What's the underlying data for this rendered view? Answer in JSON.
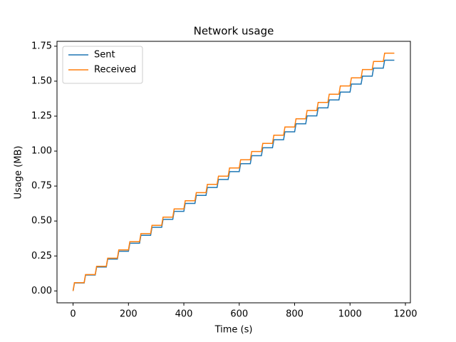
{
  "chart_data": {
    "type": "line",
    "title": "Network usage",
    "x_label": "Time (s)",
    "y_label": "Usage (MB)",
    "x": [
      0,
      5,
      40,
      45,
      80,
      85,
      120,
      125,
      160,
      165,
      200,
      205,
      240,
      245,
      280,
      285,
      320,
      325,
      360,
      365,
      400,
      405,
      440,
      445,
      480,
      485,
      520,
      525,
      560,
      565,
      600,
      605,
      640,
      645,
      680,
      685,
      720,
      725,
      760,
      765,
      800,
      805,
      840,
      845,
      880,
      885,
      920,
      925,
      960,
      965,
      1000,
      1005,
      1040,
      1045,
      1080,
      1085,
      1120,
      1125,
      1160
    ],
    "series": [
      {
        "name": "Sent",
        "color": "#1f77b4",
        "values": [
          0,
          0.057,
          0.057,
          0.114,
          0.114,
          0.171,
          0.171,
          0.228,
          0.228,
          0.284,
          0.284,
          0.341,
          0.341,
          0.398,
          0.398,
          0.455,
          0.455,
          0.512,
          0.512,
          0.569,
          0.569,
          0.626,
          0.626,
          0.683,
          0.683,
          0.74,
          0.74,
          0.797,
          0.797,
          0.853,
          0.853,
          0.91,
          0.91,
          0.967,
          0.967,
          1.024,
          1.024,
          1.081,
          1.081,
          1.138,
          1.138,
          1.195,
          1.195,
          1.252,
          1.252,
          1.309,
          1.309,
          1.366,
          1.366,
          1.422,
          1.422,
          1.479,
          1.479,
          1.536,
          1.536,
          1.593,
          1.593,
          1.65,
          1.65
        ]
      },
      {
        "name": "Received",
        "color": "#ff7f0e",
        "values": [
          0,
          0.059,
          0.059,
          0.117,
          0.117,
          0.176,
          0.176,
          0.234,
          0.234,
          0.293,
          0.293,
          0.352,
          0.352,
          0.41,
          0.41,
          0.469,
          0.469,
          0.528,
          0.528,
          0.586,
          0.586,
          0.645,
          0.645,
          0.703,
          0.703,
          0.762,
          0.762,
          0.821,
          0.821,
          0.879,
          0.879,
          0.938,
          0.938,
          0.997,
          0.997,
          1.055,
          1.055,
          1.114,
          1.114,
          1.172,
          1.172,
          1.231,
          1.231,
          1.29,
          1.29,
          1.348,
          1.348,
          1.407,
          1.407,
          1.466,
          1.466,
          1.524,
          1.524,
          1.583,
          1.583,
          1.641,
          1.641,
          1.7,
          1.7
        ]
      }
    ],
    "xlim": [
      -58,
      1218
    ],
    "ylim": [
      -0.085,
      1.785
    ],
    "xticks": [
      0,
      200,
      400,
      600,
      800,
      1000,
      1200
    ],
    "yticks": [
      {
        "value": 0,
        "label": "0.00"
      },
      {
        "value": 0.25,
        "label": "0.25"
      },
      {
        "value": 0.5,
        "label": "0.50"
      },
      {
        "value": 0.75,
        "label": "0.75"
      },
      {
        "value": 1,
        "label": "1.00"
      },
      {
        "value": 1.25,
        "label": "1.25"
      },
      {
        "value": 1.5,
        "label": "1.50"
      },
      {
        "value": 1.75,
        "label": "1.75"
      }
    ],
    "legend": "upper left"
  }
}
